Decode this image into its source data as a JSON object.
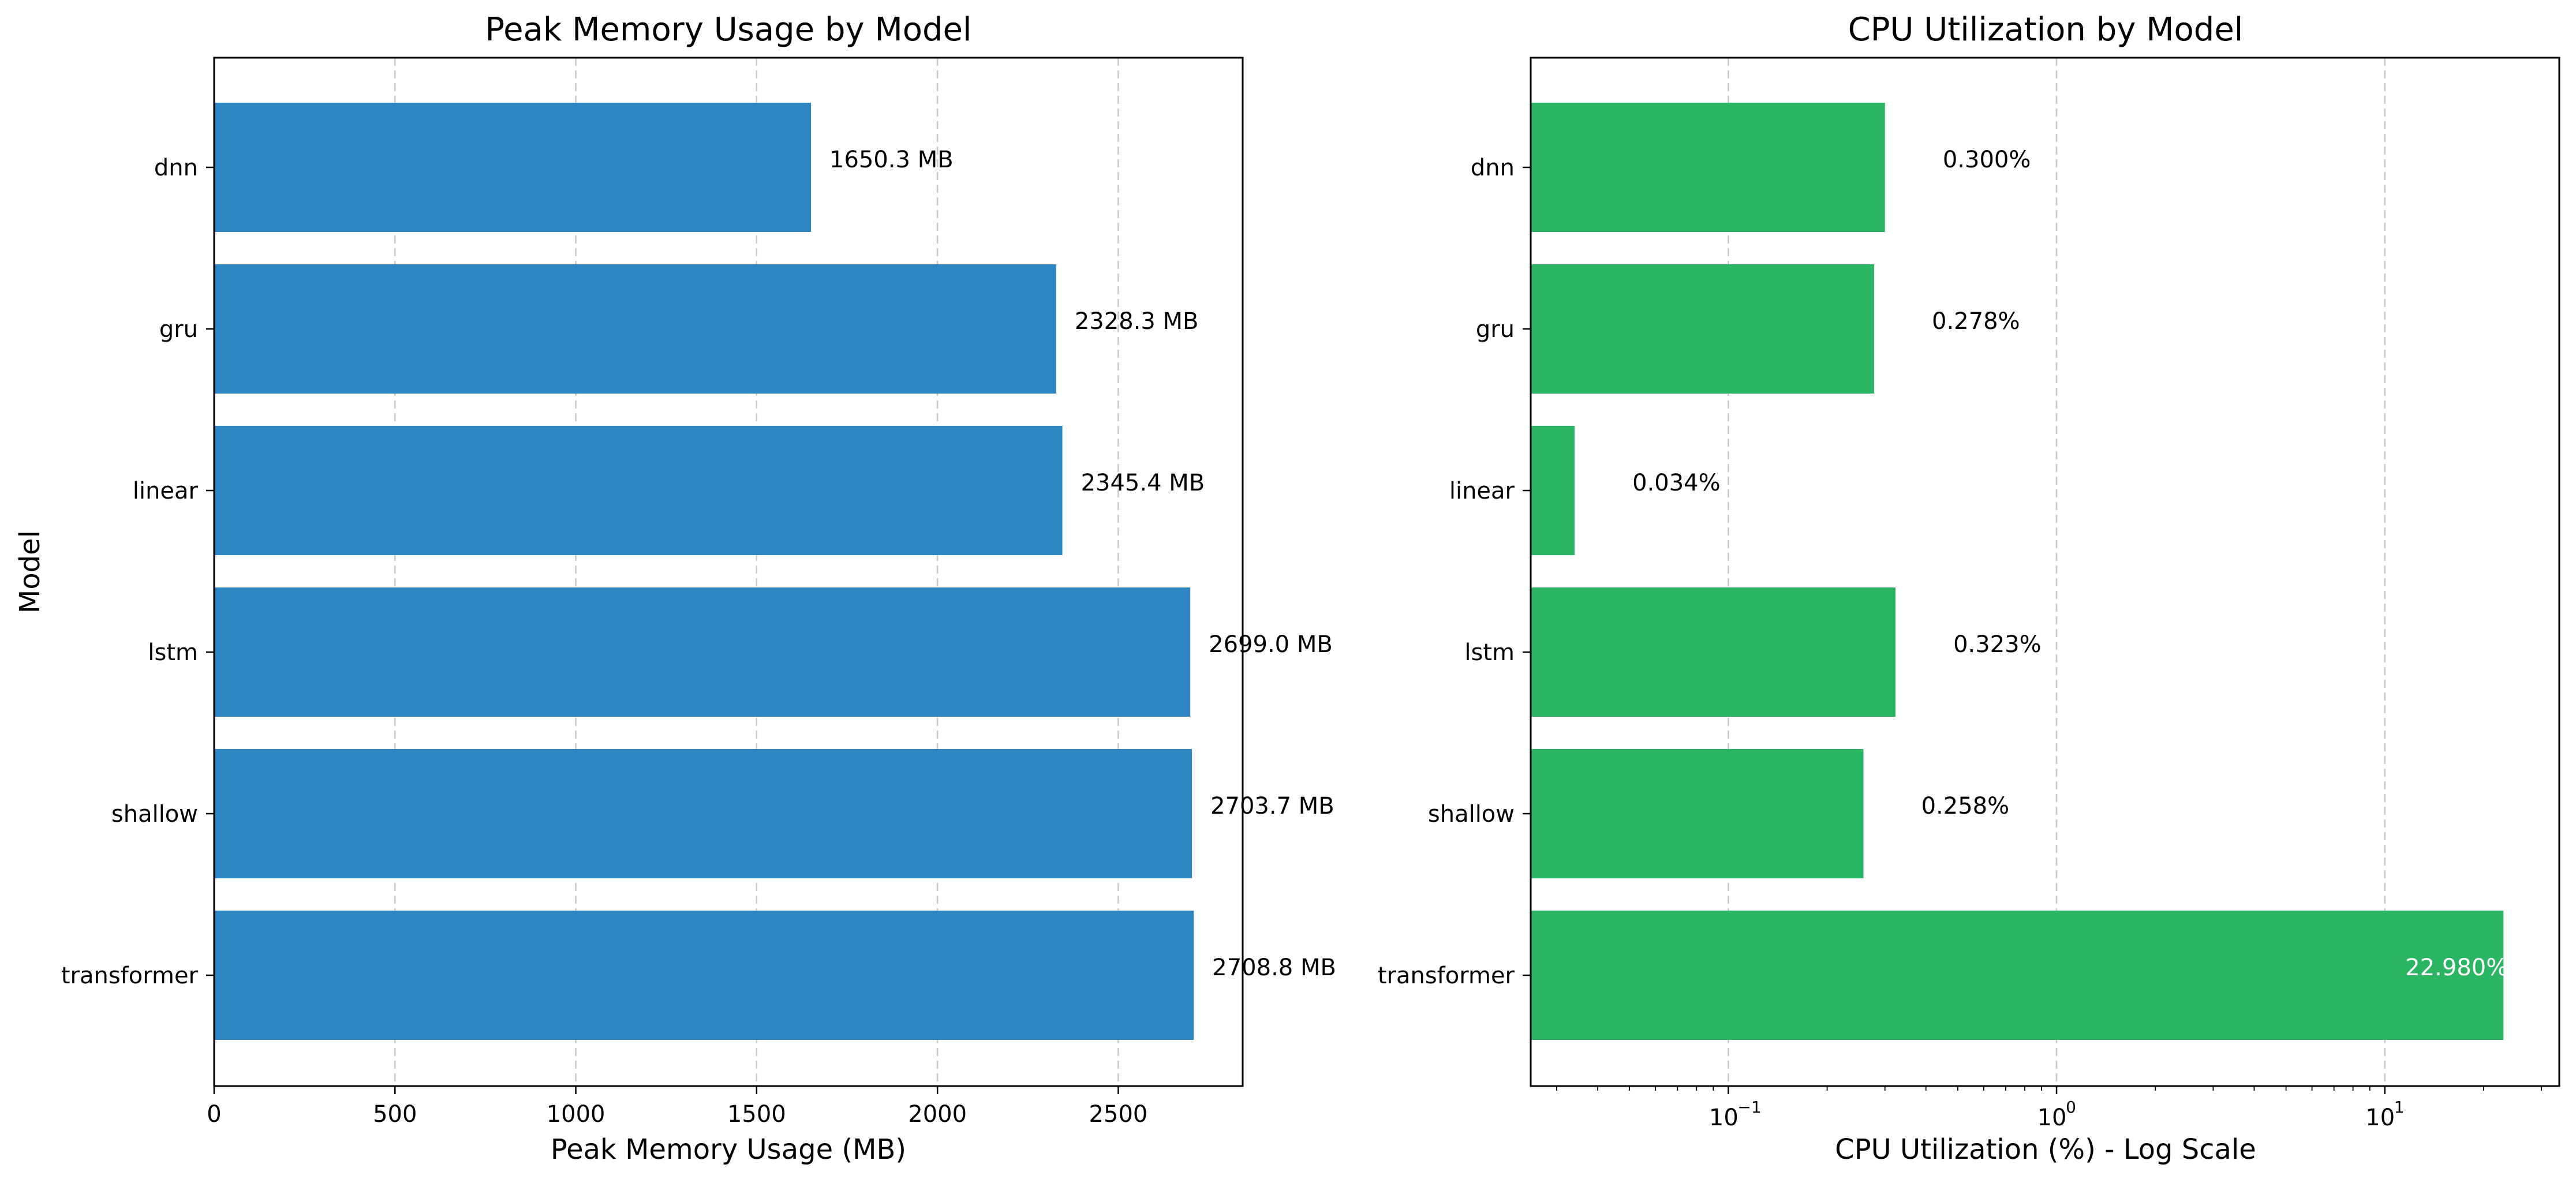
{
  "chart_data": [
    {
      "type": "bar",
      "orientation": "horizontal",
      "title": "Peak Memory Usage by Model",
      "xlabel": "Peak Memory Usage (MB)",
      "ylabel": "Model",
      "categories": [
        "dnn",
        "gru",
        "linear",
        "lstm",
        "shallow",
        "transformer"
      ],
      "values": [
        1650.3,
        2328.3,
        2345.4,
        2699.0,
        2703.7,
        2708.8
      ],
      "value_labels": [
        "1650.3 MB",
        "2328.3 MB",
        "2345.4 MB",
        "2699.0 MB",
        "2703.7 MB",
        "2708.8 MB"
      ],
      "xlim": [
        0,
        2844
      ],
      "xticks": [
        0,
        500,
        1000,
        1500,
        2000,
        2500
      ],
      "xtick_labels": [
        "0",
        "500",
        "1000",
        "1500",
        "2000",
        "2500"
      ],
      "xscale": "linear",
      "grid": "x, dashed",
      "color": "#2e86c1"
    },
    {
      "type": "bar",
      "orientation": "horizontal",
      "title": "CPU Utilization by Model",
      "xlabel": "CPU Utilization (%) - Log Scale",
      "ylabel": "",
      "categories": [
        "dnn",
        "gru",
        "linear",
        "lstm",
        "shallow",
        "transformer"
      ],
      "values": [
        0.3,
        0.278,
        0.034,
        0.323,
        0.258,
        22.98
      ],
      "value_labels": [
        "0.300%",
        "0.278%",
        "0.034%",
        "0.323%",
        "0.258%",
        "22.980%"
      ],
      "xlim": [
        0.025,
        34
      ],
      "xticks": [
        0.1,
        1,
        10
      ],
      "xtick_labels": [
        {
          "base": "10",
          "exp": "−1"
        },
        {
          "base": "10",
          "exp": "0"
        },
        {
          "base": "10",
          "exp": "1"
        }
      ],
      "xscale": "log",
      "grid": "x, dashed",
      "color": "#2ab563",
      "inside_label_color": "#ffffff"
    }
  ]
}
